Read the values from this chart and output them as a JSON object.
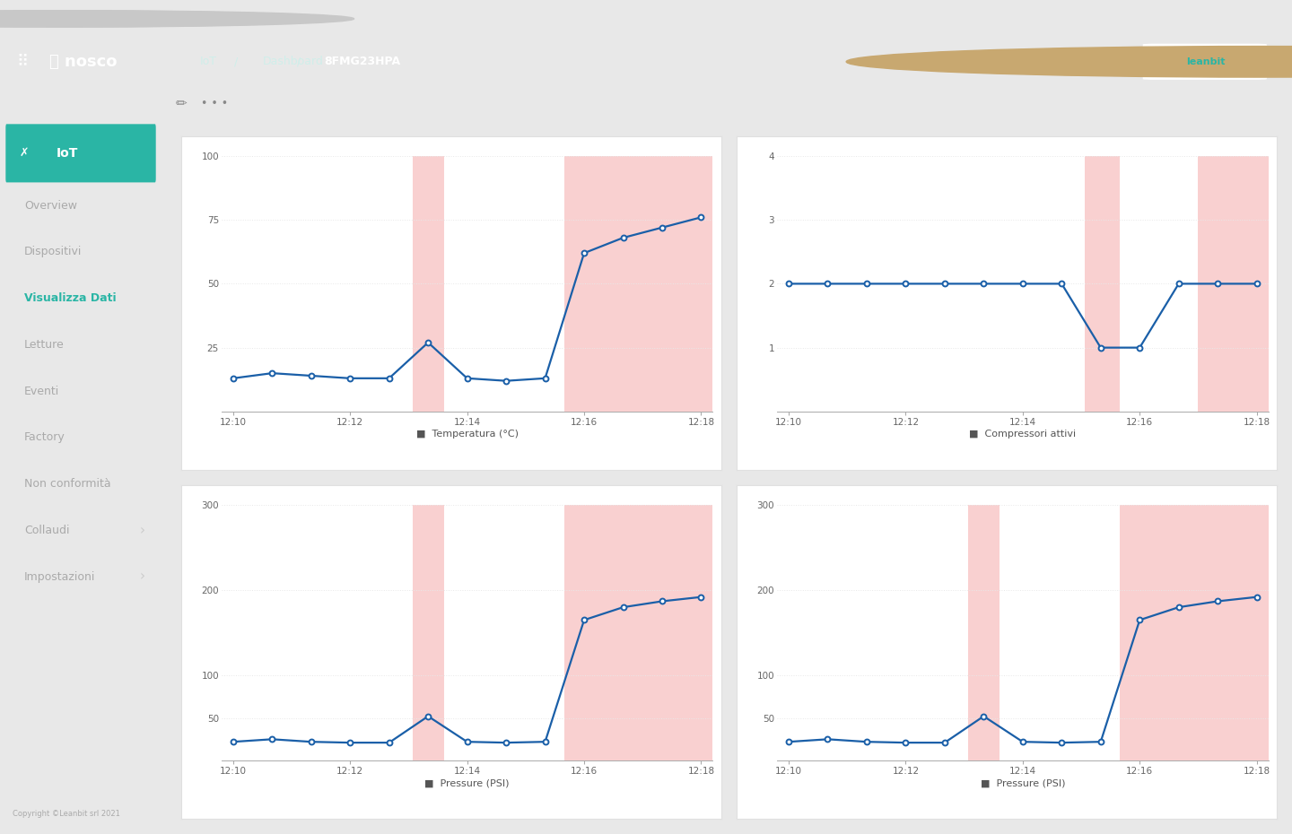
{
  "window_chrome_color": "#e8e8e8",
  "bg_color": "#f0f0f5",
  "header_color": "#2ab5a5",
  "sidebar_bg": "#ffffff",
  "sidebar_border": "#e8e8e8",
  "content_bg": "#f0f0f5",
  "card_bg": "#ffffff",
  "card_border": "#e0e0e0",
  "line_color": "#1a5fa8",
  "anomaly_color": "#f9d0d0",
  "grid_color": "#e8e8e8",
  "tick_color": "#aaaaaa",
  "label_color": "#666666",
  "active_menu_color": "#2ab5a5",
  "inactive_menu_color": "#aaaaaa",
  "time_labels": [
    "12:10",
    "12:12",
    "12:14",
    "12:16",
    "12:18"
  ],
  "temp_x": [
    0,
    1,
    2,
    3,
    4,
    5,
    6,
    7,
    8,
    9,
    10,
    11,
    12
  ],
  "temp_y": [
    13,
    15,
    14,
    13,
    13,
    27,
    13,
    12,
    13,
    62,
    68,
    72,
    76
  ],
  "temp_ylim": [
    0,
    100
  ],
  "temp_yticks": [
    25,
    50,
    75,
    100
  ],
  "temp_label": "Temperatura (°C)",
  "temp_anomaly1": [
    4.6,
    5.4
  ],
  "temp_anomaly2": [
    8.5,
    12.6
  ],
  "comp_x": [
    0,
    1,
    2,
    3,
    4,
    5,
    6,
    7,
    8,
    9,
    10,
    11,
    12
  ],
  "comp_y": [
    2,
    2,
    2,
    2,
    2,
    2,
    2,
    2,
    1.0,
    1.0,
    2.0,
    2.0,
    2.0
  ],
  "comp_ylim": [
    0,
    4
  ],
  "comp_yticks": [
    1,
    2,
    3,
    4
  ],
  "comp_label": "Compressori attivi",
  "comp_anomaly1": [
    7.6,
    8.5
  ],
  "comp_anomaly2": [
    10.5,
    12.6
  ],
  "pres1_x": [
    0,
    1,
    2,
    3,
    4,
    5,
    6,
    7,
    8,
    9,
    10,
    11,
    12
  ],
  "pres1_y": [
    22,
    25,
    22,
    21,
    21,
    52,
    22,
    21,
    22,
    165,
    180,
    187,
    192
  ],
  "pres1_ylim": [
    0,
    300
  ],
  "pres1_yticks": [
    50,
    100,
    200,
    300
  ],
  "pres1_label": "Pressure (PSI)",
  "pres1_anomaly1": [
    4.6,
    5.4
  ],
  "pres1_anomaly2": [
    8.5,
    12.6
  ],
  "pres2_x": [
    0,
    1,
    2,
    3,
    4,
    5,
    6,
    7,
    8,
    9,
    10,
    11,
    12
  ],
  "pres2_y": [
    22,
    25,
    22,
    21,
    21,
    52,
    22,
    21,
    22,
    165,
    180,
    187,
    192
  ],
  "pres2_ylim": [
    0,
    300
  ],
  "pres2_yticks": [
    50,
    100,
    200,
    300
  ],
  "pres2_label": "Pressure (PSI)",
  "pres2_anomaly1": [
    4.6,
    5.4
  ],
  "pres2_anomaly2": [
    8.5,
    12.6
  ],
  "sidebar_items": [
    "Overview",
    "Dispositivi",
    "Visualizza Dati",
    "Letture",
    "Eventi",
    "Factory",
    "Non conformità",
    "Collaudi",
    "Impostazioni"
  ],
  "active_item": "Visualizza Dati",
  "has_arrow": [
    "Collaudi",
    "Impostazioni"
  ],
  "breadcrumb_parts": [
    "IoT",
    "/",
    "Dashboard",
    "/",
    "8FMG23HPA"
  ],
  "breadcrumb_bold": [
    false,
    false,
    false,
    false,
    true
  ],
  "copyright": "Copyright ©Leanbit srl 2021"
}
